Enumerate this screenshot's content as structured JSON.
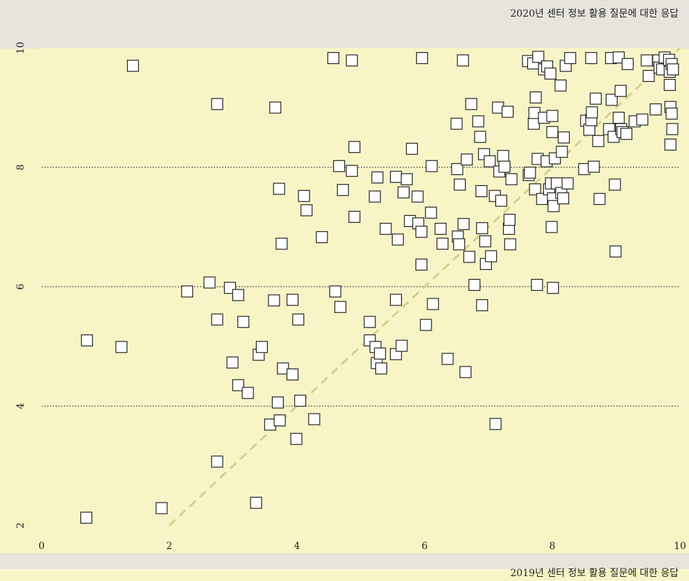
{
  "chart_data": {
    "type": "scatter",
    "title": "2020년 센터 정보 활용 질문에 대한 응답",
    "xlabel": "2019년 센터 정보 활용 질문에 대한 응답",
    "xlim": [
      0,
      10
    ],
    "xticks": [
      0,
      2,
      4,
      6,
      8,
      10
    ],
    "ylim": [
      2,
      10
    ],
    "yticks": [
      2,
      4,
      6,
      8,
      10
    ],
    "grid": true,
    "color": "#ffffff",
    "reference_line_color": "#d6cf8c",
    "x": [
      0.7,
      0.71,
      1.25,
      1.43,
      1.88,
      2.28,
      2.63,
      2.75,
      2.75,
      2.75,
      2.95,
      2.99,
      3.08,
      3.08,
      3.16,
      3.23,
      3.36,
      3.4,
      3.45,
      3.58,
      3.64,
      3.66,
      3.7,
      3.72,
      3.73,
      3.76,
      3.78,
      3.93,
      3.93,
      3.99,
      4.02,
      4.05,
      4.11,
      4.15,
      4.27,
      4.39,
      4.57,
      4.6,
      4.66,
      4.68,
      4.72,
      4.86,
      4.86,
      4.9,
      4.9,
      5.14,
      5.14,
      5.22,
      5.23,
      5.25,
      5.26,
      5.3,
      5.32,
      5.39,
      5.55,
      5.55,
      5.55,
      5.58,
      5.64,
      5.67,
      5.72,
      5.77,
      5.8,
      5.89,
      5.9,
      5.95,
      5.96,
      5.95,
      6.02,
      6.1,
      6.11,
      6.13,
      6.25,
      6.28,
      6.36,
      6.5,
      6.51,
      6.52,
      6.54,
      6.55,
      6.6,
      6.61,
      6.64,
      6.66,
      6.7,
      6.73,
      6.78,
      6.84,
      6.87,
      6.89,
      6.9,
      6.9,
      6.93,
      6.95,
      6.96,
      7.02,
      7.04,
      7.1,
      7.11,
      7.15,
      7.17,
      7.2,
      7.23,
      7.25,
      7.3,
      7.32,
      7.33,
      7.34,
      7.36,
      7.62,
      7.63,
      7.65,
      7.7,
      7.71,
      7.72,
      7.74,
      7.73,
      7.76,
      7.77,
      7.78,
      7.84,
      7.87,
      7.87,
      7.91,
      7.92,
      7.95,
      7.97,
      7.98,
      7.99,
      8.0,
      8.0,
      8.01,
      8.01,
      8.02,
      8.04,
      8.07,
      8.13,
      8.14,
      8.15,
      8.17,
      8.18,
      8.21,
      8.24,
      8.28,
      8.5,
      8.53,
      8.58,
      8.61,
      8.61,
      8.62,
      8.65,
      8.68,
      8.72,
      8.74,
      8.89,
      8.92,
      8.93,
      8.96,
      8.98,
      8.99,
      9.04,
      9.07,
      9.04,
      9.08,
      9.1,
      9.16,
      9.18,
      9.29,
      9.41,
      9.48,
      9.51,
      9.62,
      9.66,
      9.68,
      9.72,
      9.76,
      9.83,
      9.84,
      9.84,
      9.85,
      9.85,
      9.87,
      9.87,
      9.88,
      9.89
    ],
    "values": [
      2.13,
      5.1,
      4.99,
      9.7,
      2.29,
      5.92,
      6.07,
      9.06,
      5.45,
      3.07,
      5.98,
      4.73,
      5.86,
      4.35,
      5.41,
      4.22,
      2.38,
      4.86,
      4.99,
      3.69,
      5.77,
      9.0,
      4.06,
      7.64,
      3.76,
      6.72,
      4.63,
      5.78,
      4.53,
      3.45,
      5.45,
      4.09,
      7.52,
      7.28,
      3.78,
      6.83,
      9.83,
      5.92,
      8.02,
      5.66,
      7.62,
      9.79,
      7.94,
      7.17,
      8.34,
      5.41,
      5.1,
      7.51,
      4.99,
      4.72,
      7.83,
      4.88,
      4.63,
      6.97,
      7.84,
      5.78,
      4.87,
      6.79,
      5.01,
      7.58,
      7.8,
      7.1,
      8.31,
      7.51,
      7.06,
      6.92,
      9.83,
      6.37,
      5.36,
      7.24,
      8.02,
      5.71,
      6.97,
      6.72,
      4.79,
      8.73,
      7.97,
      6.84,
      6.71,
      7.71,
      9.79,
      7.05,
      4.57,
      8.13,
      6.5,
      9.06,
      6.03,
      8.77,
      8.51,
      7.6,
      6.98,
      5.69,
      8.22,
      6.76,
      6.38,
      8.1,
      6.51,
      7.52,
      3.7,
      9.0,
      7.93,
      7.44,
      8.19,
      8.01,
      8.93,
      6.97,
      7.12,
      6.71,
      7.8,
      9.78,
      7.87,
      7.91,
      9.74,
      8.73,
      8.91,
      9.17,
      7.63,
      6.03,
      8.14,
      9.85,
      7.47,
      9.64,
      8.83,
      8.1,
      9.69,
      7.63,
      9.57,
      7.73,
      7.0,
      8.59,
      8.86,
      5.98,
      7.48,
      7.35,
      8.15,
      7.73,
      9.37,
      7.57,
      8.26,
      7.48,
      8.5,
      9.7,
      7.73,
      9.83,
      7.97,
      8.78,
      8.63,
      8.79,
      9.83,
      8.92,
      8.01,
      9.15,
      8.44,
      7.47,
      8.64,
      9.83,
      9.13,
      8.51,
      7.71,
      6.59,
      9.84,
      9.28,
      8.83,
      8.64,
      8.59,
      8.56,
      9.73,
      8.77,
      8.8,
      9.79,
      9.53,
      8.97,
      9.79,
      9.67,
      9.64,
      9.84,
      9.8,
      9.6,
      9.38,
      9.01,
      8.38,
      9.73,
      8.9,
      8.64,
      9.64
    ]
  }
}
